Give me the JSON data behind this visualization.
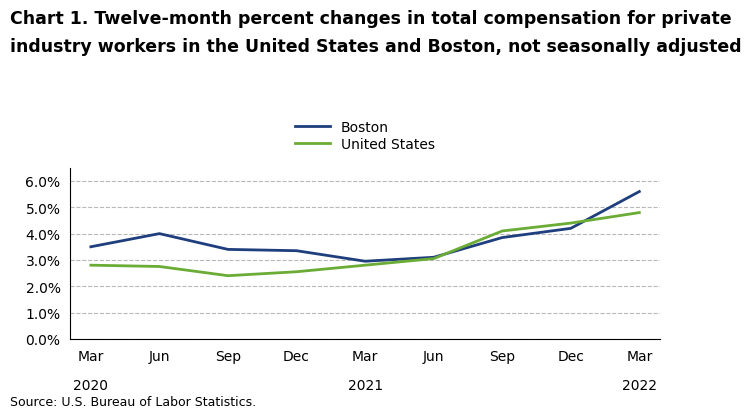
{
  "title_line1": "Chart 1. Twelve-month percent changes in total compensation for private",
  "title_line2": "industry workers in the United States and Boston, not seasonally adjusted",
  "source": "Source: U.S. Bureau of Labor Statistics.",
  "x_labels": [
    "Mar",
    "Jun",
    "Sep",
    "Dec",
    "Mar",
    "Jun",
    "Sep",
    "Dec",
    "Mar"
  ],
  "x_year_labels": [
    "2020",
    "",
    "",
    "",
    "2021",
    "",
    "",
    "",
    "2022"
  ],
  "boston_values": [
    3.5,
    4.0,
    3.4,
    3.35,
    2.95,
    3.1,
    3.85,
    4.2,
    5.6
  ],
  "us_values": [
    2.8,
    2.75,
    2.4,
    2.55,
    2.8,
    3.05,
    4.1,
    4.4,
    4.8
  ],
  "boston_color": "#1f3e7d",
  "us_color": "#6aac35",
  "ylim": [
    0.0,
    6.5
  ],
  "yticks": [
    0.0,
    1.0,
    2.0,
    3.0,
    4.0,
    5.0,
    6.0
  ],
  "ytick_labels": [
    "0.0%",
    "1.0%",
    "2.0%",
    "3.0%",
    "4.0%",
    "5.0%",
    "6.0%"
  ],
  "legend_labels": [
    "Boston",
    "United States"
  ],
  "title_fontsize": 12.5,
  "axis_fontsize": 10,
  "legend_fontsize": 10,
  "source_fontsize": 9,
  "line_width": 2.0,
  "grid_color": "#b8b8b8",
  "background_color": "#ffffff"
}
